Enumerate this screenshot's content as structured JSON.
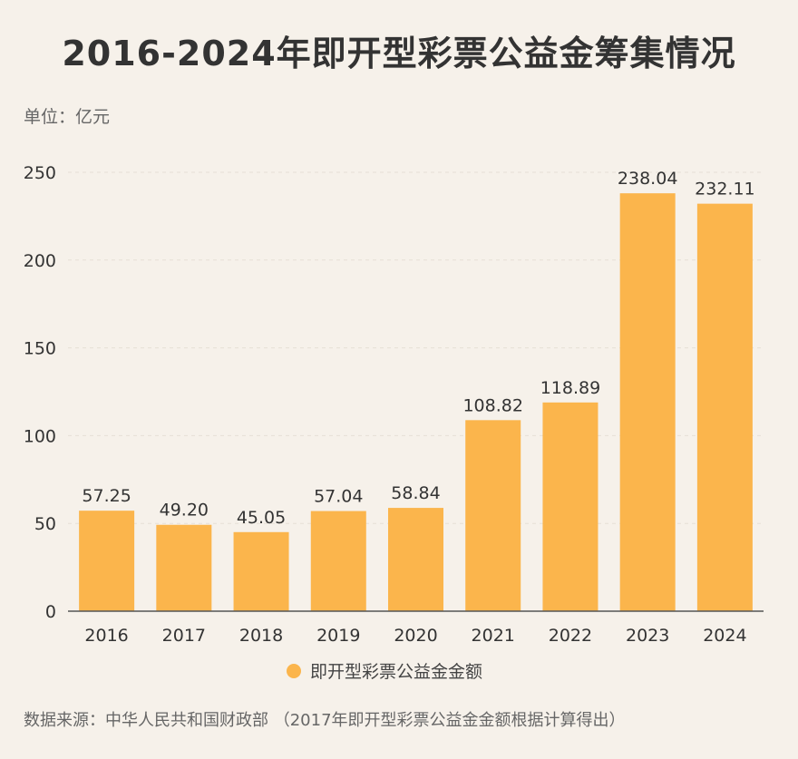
{
  "title": "2016-2024年即开型彩票公益金筹集情况",
  "unit_label": "单位：亿元",
  "source_text": "数据来源：中华人民共和国财政部 （2017年即开型彩票公益金金额根据计算得出）",
  "colors": {
    "bar": "#fbb54c",
    "axis": "#555555",
    "grid": "#e6dfd6",
    "text": "#333333"
  },
  "chart_data": {
    "type": "bar",
    "categories": [
      "2016",
      "2017",
      "2018",
      "2019",
      "2020",
      "2021",
      "2022",
      "2023",
      "2024"
    ],
    "series": [
      {
        "name": "即开型彩票公益金金额",
        "values": [
          57.25,
          49.2,
          45.05,
          57.04,
          58.84,
          108.82,
          118.89,
          238.04,
          232.11
        ],
        "labels": [
          "57.25",
          "49.20",
          "45.05",
          "57.04",
          "58.84",
          "108.82",
          "118.89",
          "238.04",
          "232.11"
        ]
      }
    ],
    "ylim": [
      0,
      250
    ],
    "yticks": [
      "0",
      "50",
      "100",
      "150",
      "200",
      "250"
    ],
    "grid": true,
    "legend_position": "bottom"
  }
}
